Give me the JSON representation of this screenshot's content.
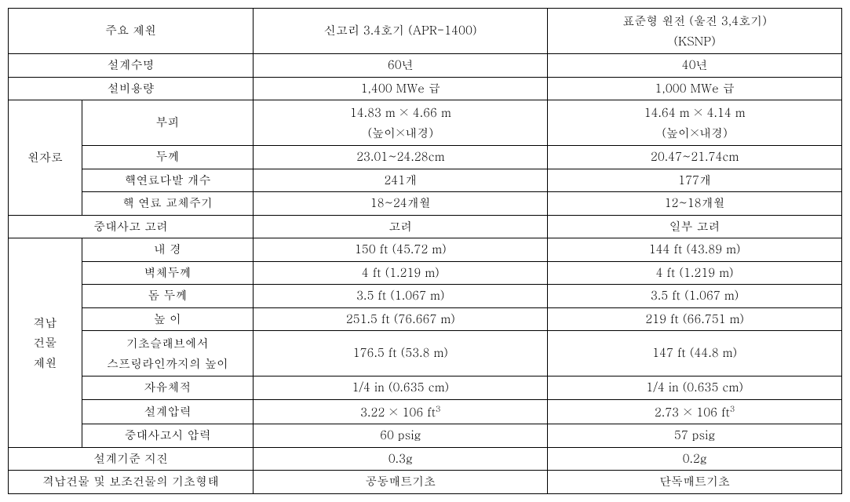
{
  "header": {
    "spec": "주요 제원",
    "plant_a": "신고리 3.4호기 (APR-1400)",
    "plant_b_line1": "표준형 원전 (울진 3,4호기)",
    "plant_b_line2": "(KSNP)"
  },
  "rows": {
    "design_life": {
      "label": "설계수명",
      "a": "60년",
      "b": "40년"
    },
    "capacity": {
      "label": "설비용량",
      "a": "1,400 MWe 급",
      "b": "1,000 MWe 급"
    },
    "reactor": {
      "group": "원자로",
      "volume": {
        "label": "부피",
        "a_line1": "14.83 m × 4.66 m",
        "a_line2": "(높이×내경)",
        "b_line1": "14.64 m × 4.14 m",
        "b_line2": "(높이×내경)"
      },
      "thickness": {
        "label": "두께",
        "a": "23.01~24.28cm",
        "b": "20.47~21.74cm"
      },
      "fuel_count": {
        "label": "핵연료다발 개수",
        "a": "241개",
        "b": "177개"
      },
      "fuel_cycle": {
        "label": "핵 연료 교체주기",
        "a": "18~24개월",
        "b": "12~18개월"
      }
    },
    "severe_accident": {
      "label": "중대사고 고려",
      "a": "고려",
      "b": "일부 고려"
    },
    "containment": {
      "group_line1": "격납",
      "group_line2": "건물",
      "group_line3": "제원",
      "inner_dia": {
        "label": "내 경",
        "a": "150 ft (45.72 m)",
        "b": "144 ft (43.89 m)"
      },
      "wall_thick": {
        "label": "벽체두께",
        "a": "4 ft (1.219 m)",
        "b": "4 ft (1.219 m)"
      },
      "dome_thick": {
        "label": "돔 두께",
        "a": "3.5 ft (1.067 m)",
        "b": "3.5 ft (1.067 m)"
      },
      "height": {
        "label": "높 이",
        "a": "251.5 ft (76.667 m)",
        "b": "219 ft (66.751 m)"
      },
      "springline": {
        "label_line1": "기초슬래브에서",
        "label_line2": "스프링라인까지의 높이",
        "a": "176.5 ft (53.8 m)",
        "b": "147 ft (44.8 m)"
      },
      "free_vol": {
        "label": "자유체적",
        "a": "1/4 in (0.635 cm)",
        "b": "1/4 in (0.635 cm)"
      },
      "design_press": {
        "label": "설계압력",
        "a_pre": "3.22 × 106 ft",
        "a_sup": "3",
        "b_pre": "2.73 × 106 ft",
        "b_sup": "3"
      },
      "accident_press": {
        "label": "중대사고시 압력",
        "a": "60 psig",
        "b": "57 psig"
      }
    },
    "design_quake": {
      "label": "설계기준 지진",
      "a": "0.3g",
      "b": "0.2g"
    },
    "foundation": {
      "label": "격납건물 및 보조건물의 기초형태",
      "a": "공동매트기초",
      "b": "단독매트기초"
    }
  }
}
